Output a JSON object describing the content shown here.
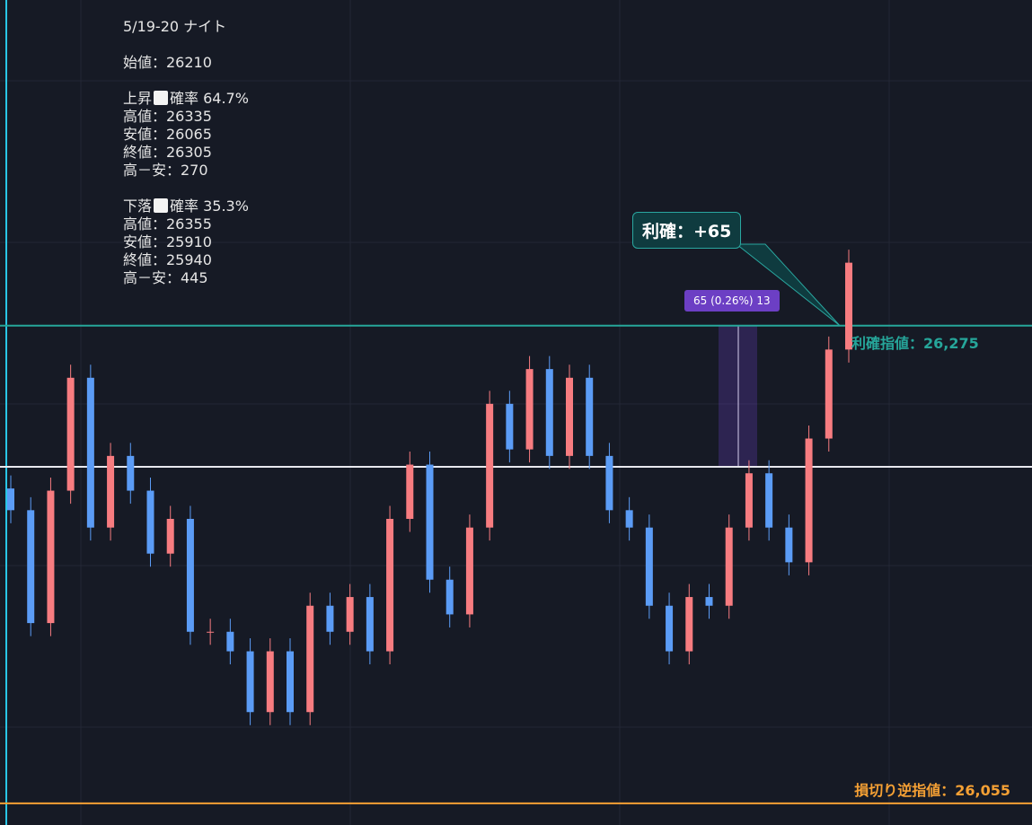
{
  "info": {
    "date": "5/19-20 ナイト",
    "open": "始値：26210",
    "up": {
      "label": "上昇",
      "prob": "確率 64.7%",
      "lines": [
        "高値：26335",
        "安値：26065",
        "終値：26305",
        "高－安：270"
      ]
    },
    "down": {
      "label": "下落",
      "prob": "確率 35.3%",
      "lines": [
        "高値：26355",
        "安値：25910",
        "終値：25940",
        "高－安：445"
      ]
    }
  },
  "chart_data": {
    "type": "candlestick",
    "up_color": "#f77c80",
    "down_color": "#5b9cf6",
    "open": [
      26200,
      26190,
      26138,
      26199,
      26251,
      26182,
      26215,
      26199,
      26170,
      26186,
      26134,
      26134,
      26125,
      26097,
      26125,
      26097,
      26146,
      26134,
      26150,
      26125,
      26186,
      26211,
      26158,
      26142,
      26182,
      26239,
      26218,
      26255,
      26215,
      26251,
      26215,
      26190,
      26182,
      26146,
      26125,
      26150,
      26146,
      26182,
      26207,
      26182,
      26166,
      26223,
      26264
    ],
    "high": [
      26206,
      26196,
      26205,
      26257,
      26257,
      26221,
      26221,
      26205,
      26192,
      26192,
      26140,
      26140,
      26131,
      26131,
      26131,
      26152,
      26152,
      26156,
      26156,
      26192,
      26217,
      26217,
      26164,
      26188,
      26245,
      26245,
      26261,
      26261,
      26257,
      26257,
      26221,
      26196,
      26188,
      26152,
      26156,
      26156,
      26188,
      26213,
      26213,
      26188,
      26229,
      26270,
      26310
    ],
    "low": [
      26184,
      26132,
      26132,
      26193,
      26176,
      26176,
      26193,
      26164,
      26164,
      26128,
      26128,
      26119,
      26091,
      26091,
      26091,
      26091,
      26128,
      26128,
      26119,
      26119,
      26180,
      26152,
      26136,
      26136,
      26176,
      26212,
      26212,
      26209,
      26209,
      26209,
      26184,
      26176,
      26140,
      26119,
      26119,
      26140,
      26140,
      26176,
      26176,
      26160,
      26160,
      26217,
      26258
    ],
    "close": [
      26190,
      26138,
      26199,
      26251,
      26182,
      26215,
      26199,
      26170,
      26186,
      26134,
      26134,
      26125,
      26097,
      26125,
      26097,
      26146,
      26134,
      26150,
      26125,
      26186,
      26211,
      26158,
      26142,
      26182,
      26239,
      26218,
      26255,
      26215,
      26251,
      26215,
      26190,
      26182,
      26146,
      26125,
      26150,
      26146,
      26182,
      26207,
      26182,
      26166,
      26223,
      26264,
      26304
    ],
    "ylim": [
      26045,
      26425
    ],
    "levels": [
      {
        "value": 26275,
        "label": "利確指値：26,275",
        "color": "#26a69a"
      },
      {
        "value": 26210,
        "color": "#e8e8ee"
      },
      {
        "value": 26055,
        "label": "損切り逆指値：26,055",
        "color": "#f5a034"
      }
    ],
    "measure": {
      "from": 26210,
      "to": 26275,
      "label": "65 (0.26%) 13"
    },
    "callout": "利確：+65"
  }
}
